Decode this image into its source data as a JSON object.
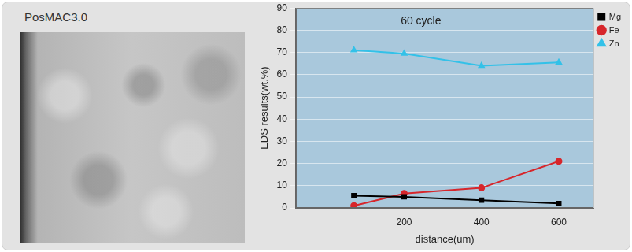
{
  "panel": {
    "label": "PosMAC3.0"
  },
  "chart_data": {
    "type": "line",
    "title": "60 cycle",
    "x_label": "distance(um)",
    "y_label": "EDS results(wt.%)",
    "x": [
      70,
      200,
      400,
      600
    ],
    "series": [
      {
        "name": "Mg",
        "color": "#000000",
        "marker": "square",
        "values": [
          5.5,
          5,
          3.5,
          2
        ]
      },
      {
        "name": "Fe",
        "color": "#d7262b",
        "marker": "circle",
        "values": [
          1,
          6.5,
          9,
          21
        ]
      },
      {
        "name": "Zn",
        "color": "#33c1e8",
        "marker": "triangle",
        "values": [
          71,
          69.5,
          64,
          65.5
        ]
      }
    ],
    "xlim": [
      -80,
      690
    ],
    "xticks": [
      200,
      400,
      600
    ],
    "ylim": [
      0,
      90
    ],
    "yticks": [
      0,
      10,
      20,
      30,
      40,
      50,
      60,
      70,
      80,
      90
    ],
    "grid": true,
    "legend": "upper right"
  }
}
